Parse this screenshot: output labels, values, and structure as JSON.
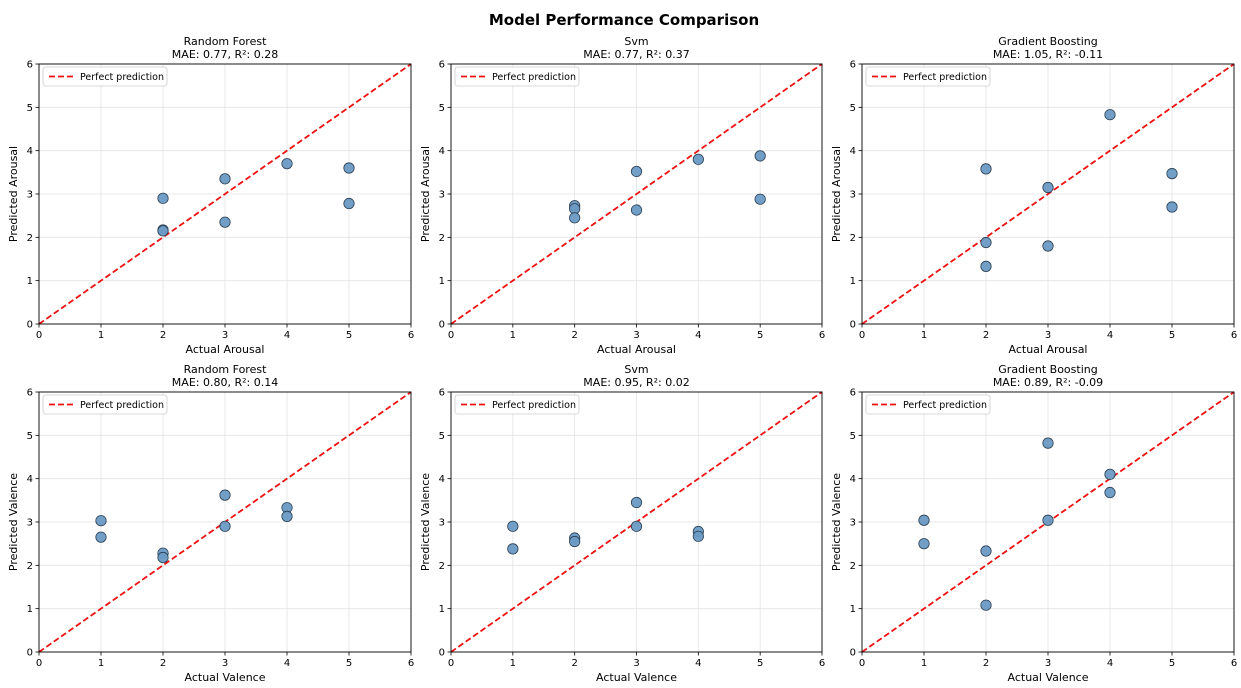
{
  "figure": {
    "suptitle": "Model Performance Comparison"
  },
  "legend_label": "Perfect prediction",
  "colors": {
    "points": "#6a9ac4",
    "point_edge": "#2b3f52",
    "diagonal": "#ee1111",
    "axis": "#000000",
    "grid": "#e3e3e3"
  },
  "chart_data": [
    {
      "type": "scatter",
      "title": "Random Forest",
      "subtitle": "MAE: 0.77, R²: 0.28",
      "xlabel": "Actual Arousal",
      "ylabel": "Predicted Arousal",
      "xlim": [
        0,
        6
      ],
      "ylim": [
        0,
        6
      ],
      "ticks": [
        0,
        1,
        2,
        3,
        4,
        5,
        6
      ],
      "grid": true,
      "legend_position": "top-left",
      "points": [
        [
          2,
          2.9
        ],
        [
          2,
          2.17
        ],
        [
          2,
          2.15
        ],
        [
          3,
          3.35
        ],
        [
          3,
          2.35
        ],
        [
          4,
          3.7
        ],
        [
          5,
          3.6
        ],
        [
          5,
          2.78
        ]
      ]
    },
    {
      "type": "scatter",
      "title": "Svm",
      "subtitle": "MAE: 0.77, R²: 0.37",
      "xlabel": "Actual Arousal",
      "ylabel": "Predicted Arousal",
      "xlim": [
        0,
        6
      ],
      "ylim": [
        0,
        6
      ],
      "ticks": [
        0,
        1,
        2,
        3,
        4,
        5,
        6
      ],
      "grid": true,
      "legend_position": "top-left",
      "points": [
        [
          2,
          2.73
        ],
        [
          2,
          2.66
        ],
        [
          2,
          2.45
        ],
        [
          3,
          3.52
        ],
        [
          3,
          2.63
        ],
        [
          4,
          3.8
        ],
        [
          5,
          3.88
        ],
        [
          5,
          2.88
        ]
      ]
    },
    {
      "type": "scatter",
      "title": "Gradient Boosting",
      "subtitle": "MAE: 1.05, R²: -0.11",
      "xlabel": "Actual Arousal",
      "ylabel": "Predicted Arousal",
      "xlim": [
        0,
        6
      ],
      "ylim": [
        0,
        6
      ],
      "ticks": [
        0,
        1,
        2,
        3,
        4,
        5,
        6
      ],
      "grid": true,
      "legend_position": "top-left",
      "points": [
        [
          2,
          3.58
        ],
        [
          2,
          1.88
        ],
        [
          2,
          1.33
        ],
        [
          3,
          3.15
        ],
        [
          3,
          1.8
        ],
        [
          4,
          4.83
        ],
        [
          5,
          3.47
        ],
        [
          5,
          2.7
        ]
      ]
    },
    {
      "type": "scatter",
      "title": "Random Forest",
      "subtitle": "MAE: 0.80, R²: 0.14",
      "xlabel": "Actual Valence",
      "ylabel": "Predicted Valence",
      "xlim": [
        0,
        6
      ],
      "ylim": [
        0,
        6
      ],
      "ticks": [
        0,
        1,
        2,
        3,
        4,
        5,
        6
      ],
      "grid": true,
      "legend_position": "top-left",
      "points": [
        [
          1,
          3.03
        ],
        [
          1,
          2.65
        ],
        [
          2,
          2.28
        ],
        [
          2,
          2.18
        ],
        [
          3,
          3.62
        ],
        [
          3,
          2.9
        ],
        [
          4,
          3.33
        ],
        [
          4,
          3.13
        ]
      ]
    },
    {
      "type": "scatter",
      "title": "Svm",
      "subtitle": "MAE: 0.95, R²: 0.02",
      "xlabel": "Actual Valence",
      "ylabel": "Predicted Valence",
      "xlim": [
        0,
        6
      ],
      "ylim": [
        0,
        6
      ],
      "ticks": [
        0,
        1,
        2,
        3,
        4,
        5,
        6
      ],
      "grid": true,
      "legend_position": "top-left",
      "points": [
        [
          1,
          2.9
        ],
        [
          1,
          2.38
        ],
        [
          2,
          2.63
        ],
        [
          2,
          2.55
        ],
        [
          3,
          3.45
        ],
        [
          3,
          2.9
        ],
        [
          4,
          2.78
        ],
        [
          4,
          2.67
        ]
      ]
    },
    {
      "type": "scatter",
      "title": "Gradient Boosting",
      "subtitle": "MAE: 0.89, R²: -0.09",
      "xlabel": "Actual Valence",
      "ylabel": "Predicted Valence",
      "xlim": [
        0,
        6
      ],
      "ylim": [
        0,
        6
      ],
      "ticks": [
        0,
        1,
        2,
        3,
        4,
        5,
        6
      ],
      "grid": true,
      "legend_position": "top-left",
      "points": [
        [
          1,
          3.04
        ],
        [
          1,
          2.5
        ],
        [
          2,
          2.33
        ],
        [
          2,
          1.08
        ],
        [
          3,
          4.82
        ],
        [
          3,
          3.04
        ],
        [
          4,
          4.1
        ],
        [
          4,
          3.68
        ]
      ]
    }
  ]
}
